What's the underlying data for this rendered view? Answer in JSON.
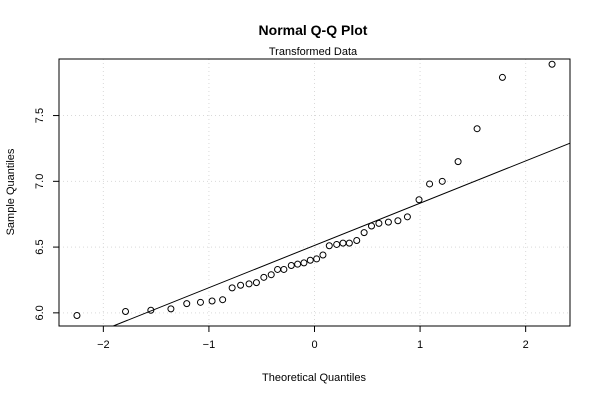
{
  "chart_data": {
    "type": "scatter",
    "title": "Normal Q-Q Plot",
    "subtitle": "Transformed Data",
    "xlabel": "Theoretical Quantiles",
    "ylabel": "Sample Quantiles",
    "xlim": [
      -2.42,
      2.42
    ],
    "ylim": [
      5.9,
      7.93
    ],
    "xticks": [
      -2,
      -1,
      0,
      1,
      2
    ],
    "xtick_labels": [
      "−2",
      "−1",
      "0",
      "1",
      "2"
    ],
    "yticks": [
      6.0,
      6.5,
      7.0,
      7.5
    ],
    "ytick_labels": [
      "6.0",
      "6.5",
      "7.0",
      "7.5"
    ],
    "grid": true,
    "reference_line": {
      "x": [
        -2.42,
        2.42
      ],
      "y": [
        5.735,
        7.29
      ]
    },
    "points": {
      "x": [
        -2.25,
        -1.79,
        -1.55,
        -1.36,
        -1.21,
        -1.08,
        -0.97,
        -0.87,
        -0.78,
        -0.7,
        -0.62,
        -0.55,
        -0.48,
        -0.41,
        -0.35,
        -0.29,
        -0.22,
        -0.16,
        -0.1,
        -0.04,
        0.02,
        0.08,
        0.14,
        0.21,
        0.27,
        0.33,
        0.4,
        0.47,
        0.54,
        0.61,
        0.7,
        0.79,
        0.88,
        0.99,
        1.09,
        1.21,
        1.36,
        1.54,
        1.78,
        2.25
      ],
      "y": [
        5.98,
        6.01,
        6.02,
        6.03,
        6.07,
        6.08,
        6.09,
        6.1,
        6.19,
        6.21,
        6.22,
        6.23,
        6.27,
        6.29,
        6.33,
        6.33,
        6.36,
        6.37,
        6.38,
        6.4,
        6.41,
        6.44,
        6.51,
        6.52,
        6.53,
        6.53,
        6.55,
        6.61,
        6.66,
        6.68,
        6.69,
        6.7,
        6.73,
        6.86,
        6.98,
        7.0,
        7.15,
        7.4,
        7.79,
        7.89
      ]
    }
  }
}
